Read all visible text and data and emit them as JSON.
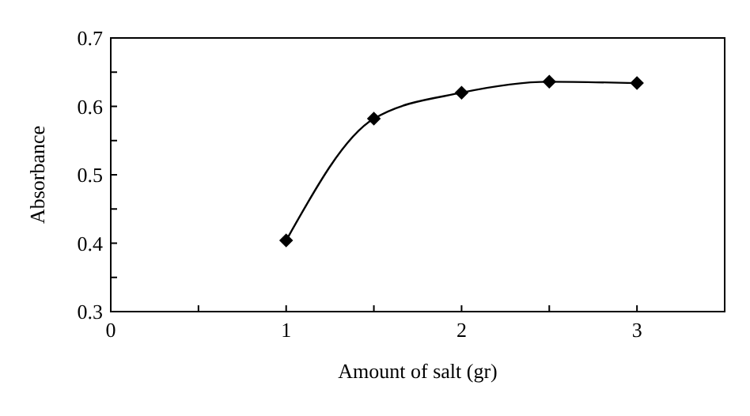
{
  "chart_data": {
    "type": "line",
    "xlabel": "Amount of salt (gr)",
    "ylabel": "Absorbance",
    "x": [
      1,
      1.5,
      2,
      2.5,
      3
    ],
    "series": [
      {
        "color": "#000000",
        "values": [
          0.404,
          0.582,
          0.62,
          0.636,
          0.634
        ]
      }
    ],
    "xlim": [
      0,
      3.5
    ],
    "ylim": [
      0.3,
      0.7
    ],
    "xticks": [
      0,
      {
        "value": 0.5,
        "label": null
      },
      1,
      {
        "value": 1.5,
        "label": null
      },
      2,
      {
        "value": 2.5,
        "label": null
      },
      3
    ],
    "yticks": [
      0.3,
      {
        "value": 0.35,
        "label": null
      },
      0.4,
      {
        "value": 0.45,
        "label": null
      },
      0.5,
      {
        "value": 0.55,
        "label": null
      },
      0.6,
      {
        "value": 0.65,
        "label": null
      },
      0.7
    ],
    "marker": "diamond",
    "line_style": "solid"
  }
}
